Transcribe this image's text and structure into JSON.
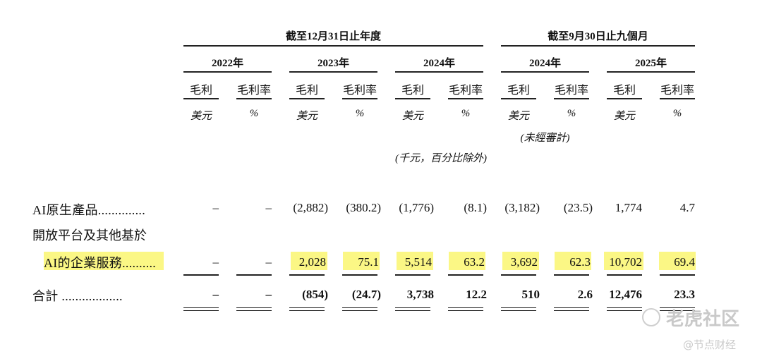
{
  "header": {
    "group_fy": "截至12月31日止年度",
    "group_9m": "截至9月30日止九個月",
    "years": [
      "2022年",
      "2023年",
      "2024年",
      "2024年",
      "2025年"
    ],
    "col_gross": "毛利",
    "col_margin": "毛利率",
    "unit_usd": "美元",
    "unit_pct": "%",
    "unaudited": "(未經審計)",
    "thousands_note": "(千元，百分比除外)"
  },
  "rows": {
    "ai_native": {
      "label": "AI原生產品..............",
      "values": [
        "–",
        "–",
        "(2,882)",
        "(380.2)",
        "(1,776)",
        "(8.1)",
        "(3,182)",
        "(23.5)",
        "1,774",
        "4.7"
      ]
    },
    "ai_services": {
      "label_line1": "開放平台及其他基於",
      "label_line2": "AI的企業服務..........",
      "values": [
        "–",
        "–",
        "2,028",
        "75.1",
        "5,514",
        "63.2",
        "3,692",
        "62.3",
        "10,702",
        "69.4"
      ]
    },
    "total": {
      "label": "合計 ..................",
      "values": [
        "–",
        "–",
        "(854)",
        "(24.7)",
        "3,738",
        "12.2",
        "510",
        "2.6",
        "12,476",
        "23.3"
      ]
    }
  },
  "watermarks": {
    "main": "老虎社区",
    "sub": "@节点财经"
  },
  "colors": {
    "highlight": "#fbf785",
    "watermark": "#c9c9c9"
  }
}
